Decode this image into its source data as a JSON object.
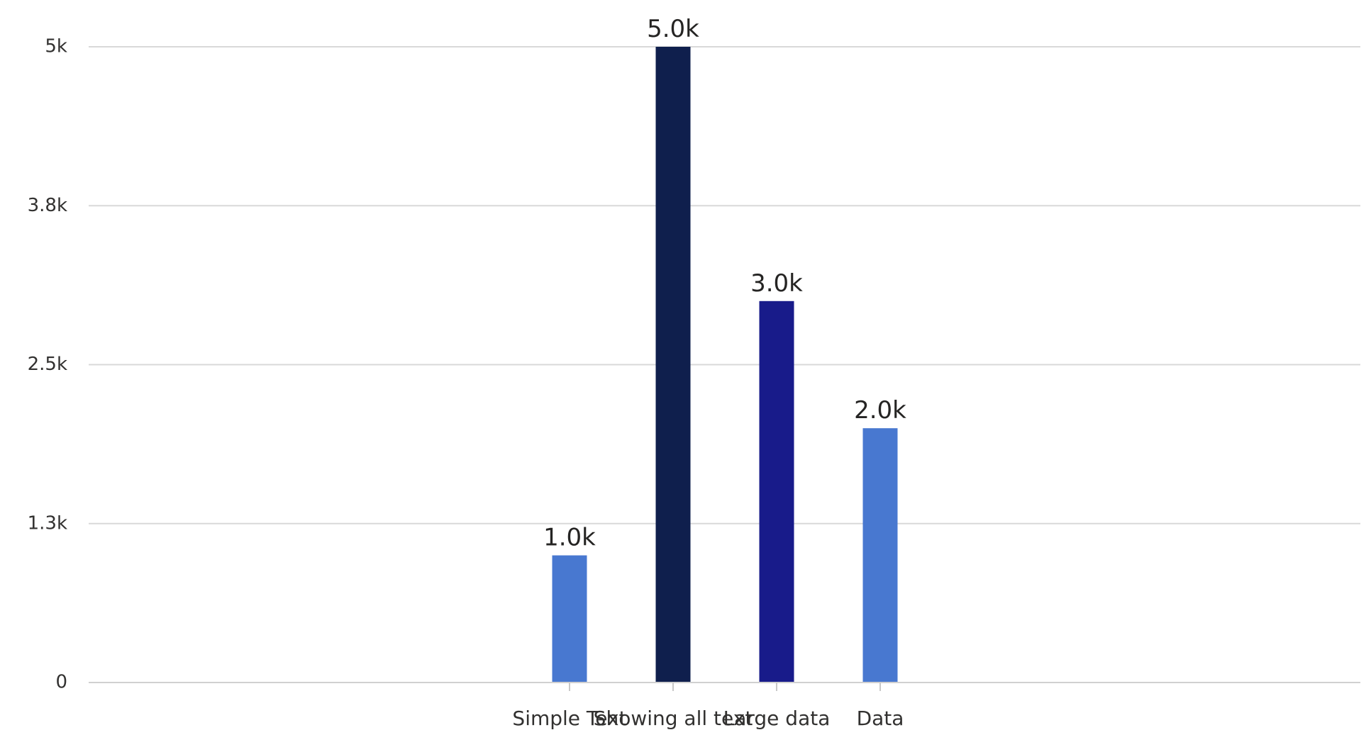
{
  "chart_data": {
    "type": "bar",
    "title": "",
    "xlabel": "",
    "ylabel": "",
    "categories": [
      "Simple Text",
      "Showing all text",
      "Large data",
      "Data"
    ],
    "values": [
      1000,
      5000,
      3000,
      2000
    ],
    "data_labels": [
      "1.0k",
      "5.0k",
      "3.0k",
      "2.0k"
    ],
    "bar_colors": [
      "#4878d0",
      "#0f1f4d",
      "#181b8a",
      "#4878d0"
    ],
    "ylim": [
      0,
      5000
    ],
    "y_ticks": [
      {
        "value": 0,
        "label": "0"
      },
      {
        "value": 1250,
        "label": "1.3k"
      },
      {
        "value": 2500,
        "label": "2.5k"
      },
      {
        "value": 3750,
        "label": "3.8k"
      },
      {
        "value": 5000,
        "label": "5k"
      }
    ],
    "grid": true,
    "legend": "none"
  }
}
